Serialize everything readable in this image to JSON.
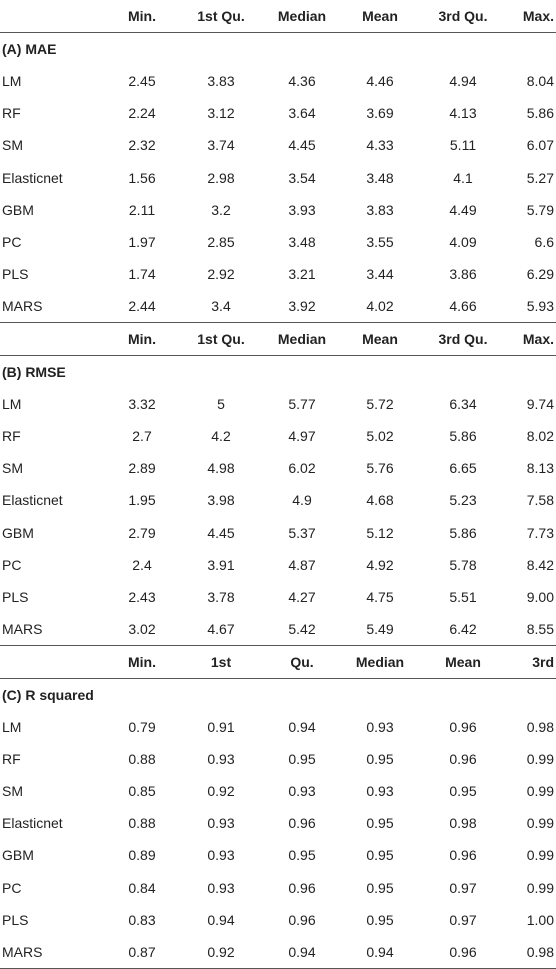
{
  "tables": [
    {
      "header": [
        "",
        "Min.",
        "1st Qu.",
        "Median",
        "Mean",
        "3rd Qu.",
        "Max."
      ],
      "title": "(A) MAE",
      "rows": [
        [
          "LM",
          "2.45",
          "3.83",
          "4.36",
          "4.46",
          "4.94",
          "8.04"
        ],
        [
          "RF",
          "2.24",
          "3.12",
          "3.64",
          "3.69",
          "4.13",
          "5.86"
        ],
        [
          "SM",
          "2.32",
          "3.74",
          "4.45",
          "4.33",
          "5.11",
          "6.07"
        ],
        [
          "Elasticnet",
          "1.56",
          "2.98",
          "3.54",
          "3.48",
          "4.1",
          "5.27"
        ],
        [
          "GBM",
          "2.11",
          "3.2",
          "3.93",
          "3.83",
          "4.49",
          "5.79"
        ],
        [
          "PC",
          "1.97",
          "2.85",
          "3.48",
          "3.55",
          "4.09",
          "6.6"
        ],
        [
          "PLS",
          "1.74",
          "2.92",
          "3.21",
          "3.44",
          "3.86",
          "6.29"
        ],
        [
          "MARS",
          "2.44",
          "3.4",
          "3.92",
          "4.02",
          "4.66",
          "5.93"
        ]
      ]
    },
    {
      "header": [
        "",
        "Min.",
        "1st Qu.",
        "Median",
        "Mean",
        "3rd Qu.",
        "Max."
      ],
      "title": "(B) RMSE",
      "rows": [
        [
          "LM",
          "3.32",
          "5",
          "5.77",
          "5.72",
          "6.34",
          "9.74"
        ],
        [
          "RF",
          "2.7",
          "4.2",
          "4.97",
          "5.02",
          "5.86",
          "8.02"
        ],
        [
          "SM",
          "2.89",
          "4.98",
          "6.02",
          "5.76",
          "6.65",
          "8.13"
        ],
        [
          "Elasticnet",
          "1.95",
          "3.98",
          "4.9",
          "4.68",
          "5.23",
          "7.58"
        ],
        [
          "GBM",
          "2.79",
          "4.45",
          "5.37",
          "5.12",
          "5.86",
          "7.73"
        ],
        [
          "PC",
          "2.4",
          "3.91",
          "4.87",
          "4.92",
          "5.78",
          "8.42"
        ],
        [
          "PLS",
          "2.43",
          "3.78",
          "4.27",
          "4.75",
          "5.51",
          "9.00"
        ],
        [
          "MARS",
          "3.02",
          "4.67",
          "5.42",
          "5.49",
          "6.42",
          "8.55"
        ]
      ]
    },
    {
      "header": [
        "",
        "Min.",
        "1st",
        "Qu.",
        "Median",
        "Mean",
        "3rd"
      ],
      "title": "(C) R squared",
      "rows": [
        [
          "LM",
          "0.79",
          "0.91",
          "0.94",
          "0.93",
          "0.96",
          "0.98"
        ],
        [
          "RF",
          "0.88",
          "0.93",
          "0.95",
          "0.95",
          "0.96",
          "0.99"
        ],
        [
          "SM",
          "0.85",
          "0.92",
          "0.93",
          "0.93",
          "0.95",
          "0.99"
        ],
        [
          "Elasticnet",
          "0.88",
          "0.93",
          "0.96",
          "0.95",
          "0.98",
          "0.99"
        ],
        [
          "GBM",
          "0.89",
          "0.93",
          "0.95",
          "0.95",
          "0.96",
          "0.99"
        ],
        [
          "PC",
          "0.84",
          "0.93",
          "0.96",
          "0.95",
          "0.97",
          "0.99"
        ],
        [
          "PLS",
          "0.83",
          "0.94",
          "0.96",
          "0.95",
          "0.97",
          "1.00"
        ],
        [
          "MARS",
          "0.87",
          "0.92",
          "0.94",
          "0.94",
          "0.96",
          "0.98"
        ]
      ]
    }
  ]
}
